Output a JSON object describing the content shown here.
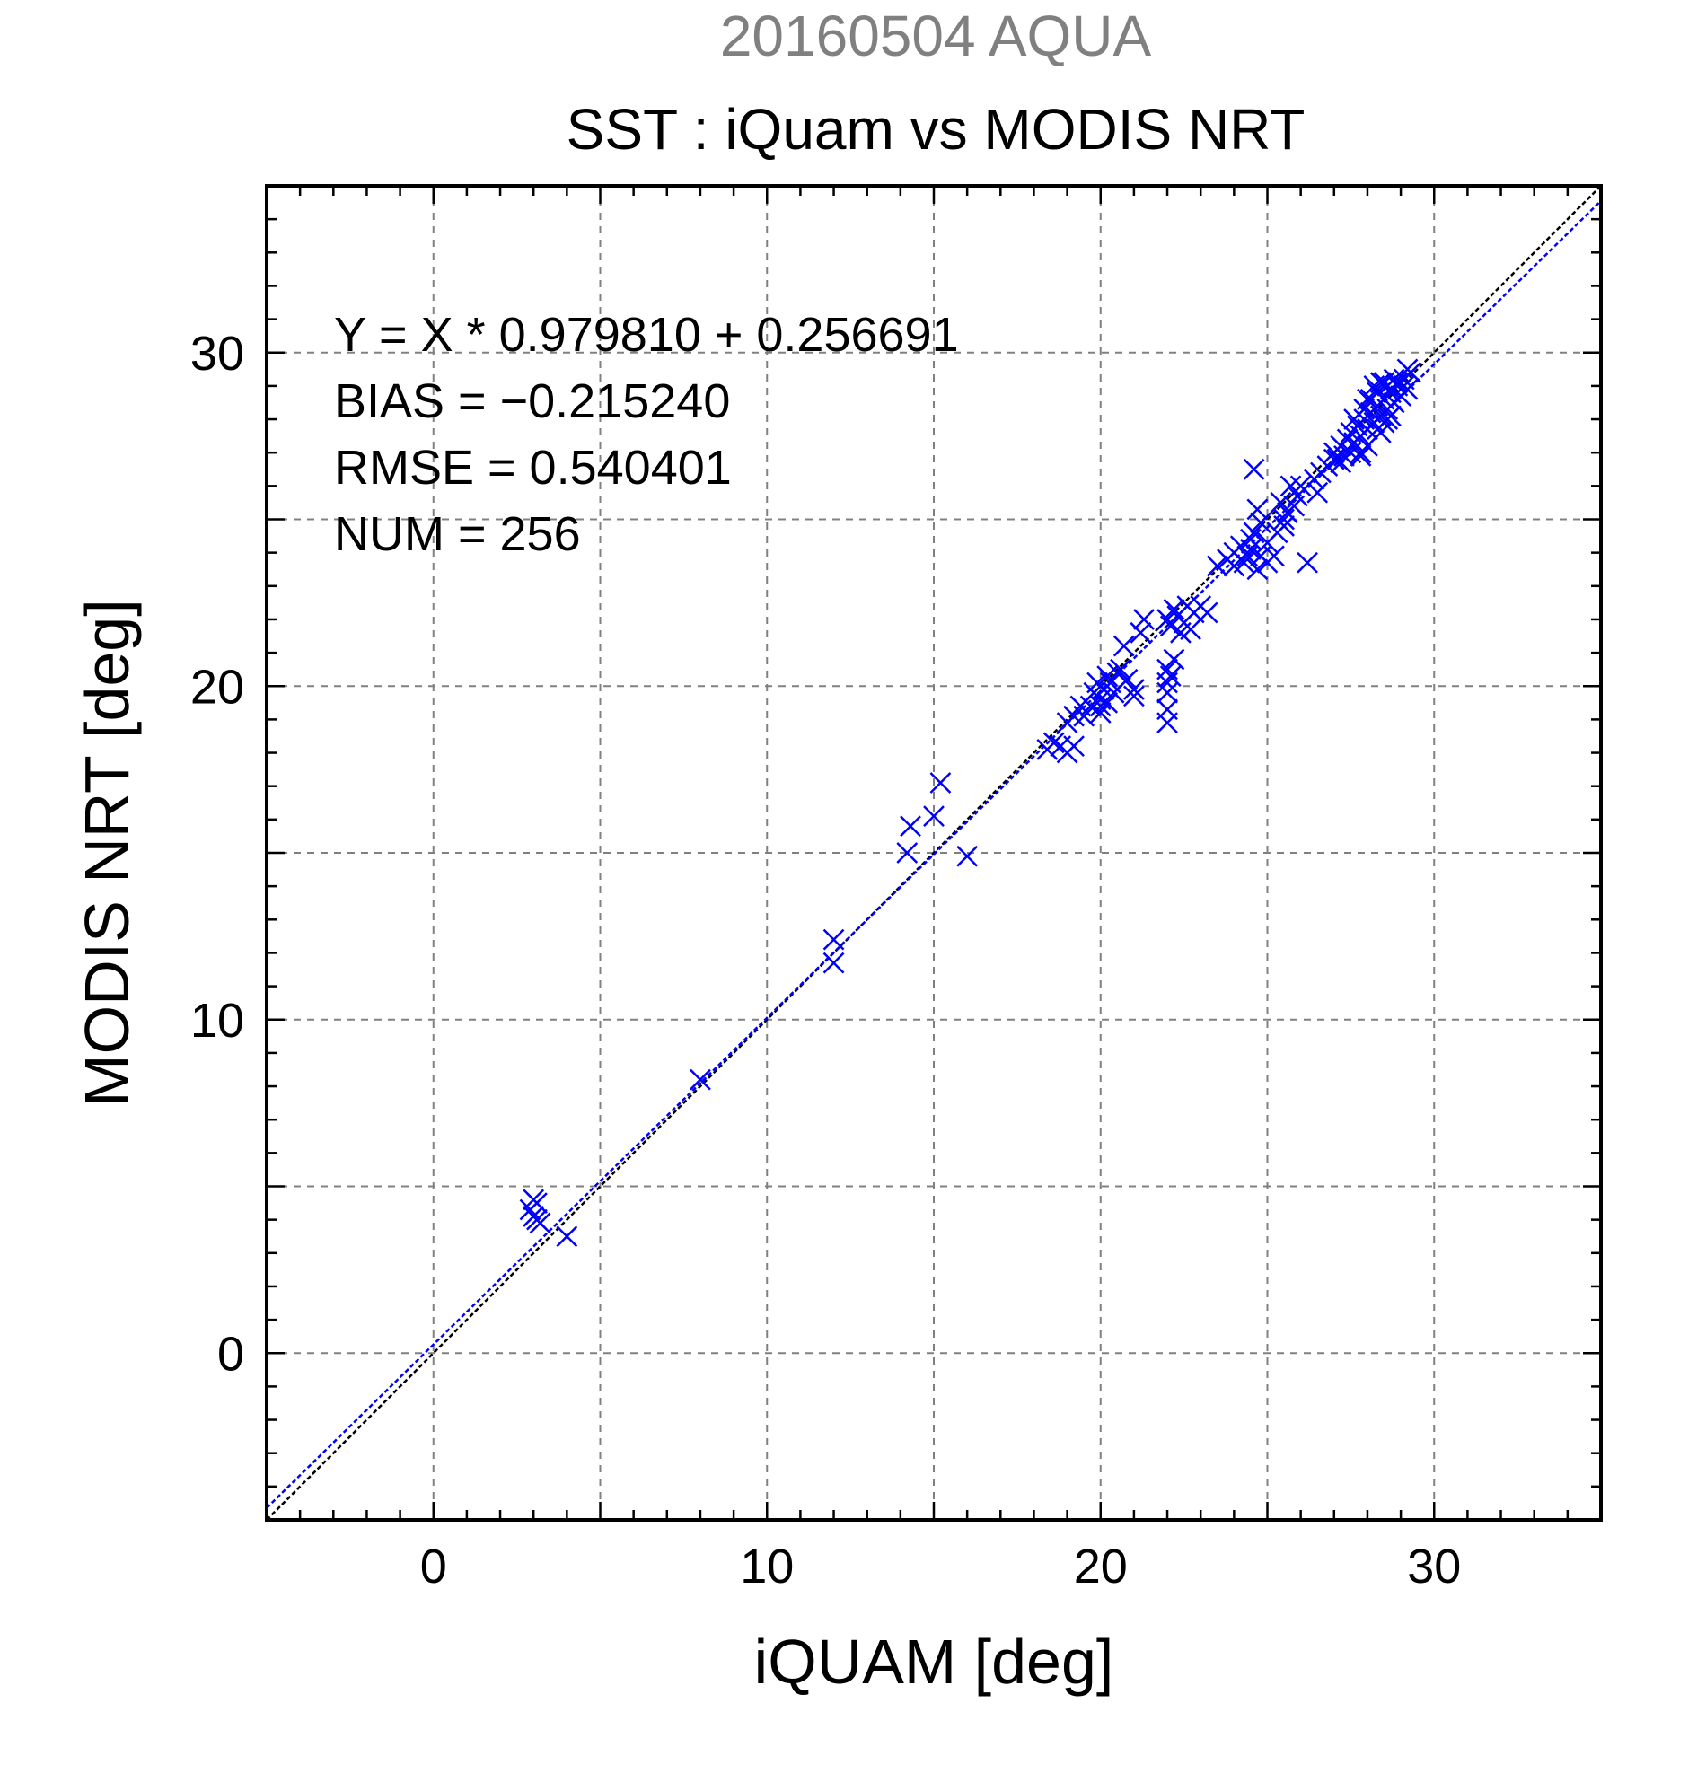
{
  "chart_data": {
    "type": "scatter",
    "title_top": "20160504 AQUA",
    "title": "SST : iQuam vs MODIS NRT",
    "xlabel": "iQUAM [deg]",
    "ylabel": "MODIS NRT [deg]",
    "xlim": [
      -5,
      35
    ],
    "ylim": [
      -5,
      35
    ],
    "x_ticks": [
      0,
      10,
      20,
      30
    ],
    "y_ticks": [
      0,
      10,
      20,
      30
    ],
    "x_tick_labels": [
      "0",
      "10",
      "20",
      "30"
    ],
    "y_tick_labels": [
      "0",
      "10",
      "20",
      "30"
    ],
    "grid": true,
    "grid_step": 5,
    "minor_tick_step": 1,
    "stats": {
      "equation": "Y = X * 0.979810 + 0.256691",
      "bias": "BIAS = −0.215240",
      "rmse": "RMSE = 0.540401",
      "num": "NUM = 256"
    },
    "lines": [
      {
        "kind": "one_to_one",
        "slope": 1.0,
        "intercept": 0.0,
        "color": "#000000"
      },
      {
        "kind": "regression",
        "slope": 0.97981,
        "intercept": 0.256691,
        "color": "#0000ff"
      }
    ],
    "marker_color": "#0000ff",
    "series": [
      {
        "marker": "x",
        "points": [
          [
            3.0,
            4.6
          ],
          [
            3.1,
            4.5
          ],
          [
            2.9,
            4.3
          ],
          [
            3.0,
            4.1
          ],
          [
            3.1,
            4.0
          ],
          [
            3.2,
            3.9
          ],
          [
            4.0,
            3.5
          ],
          [
            8.0,
            8.2
          ],
          [
            12.0,
            12.4
          ],
          [
            12.0,
            11.7
          ],
          [
            14.2,
            15.0
          ],
          [
            14.3,
            15.8
          ],
          [
            15.0,
            16.1
          ],
          [
            15.2,
            17.1
          ],
          [
            16.0,
            14.9
          ],
          [
            18.4,
            18.1
          ],
          [
            18.6,
            18.3
          ],
          [
            18.8,
            18.2
          ],
          [
            19.0,
            18.0
          ],
          [
            19.2,
            18.2
          ],
          [
            19.0,
            18.9
          ],
          [
            19.2,
            19.1
          ],
          [
            19.4,
            19.4
          ],
          [
            19.5,
            19.1
          ],
          [
            19.7,
            19.4
          ],
          [
            19.8,
            19.8
          ],
          [
            19.9,
            20.1
          ],
          [
            20.0,
            19.6
          ],
          [
            20.1,
            19.9
          ],
          [
            20.2,
            20.3
          ],
          [
            20.3,
            20.1
          ],
          [
            20.4,
            19.8
          ],
          [
            20.5,
            20.4
          ],
          [
            20.6,
            20.5
          ],
          [
            20.8,
            20.2
          ],
          [
            21.0,
            19.9
          ],
          [
            21.0,
            19.7
          ],
          [
            20.7,
            21.2
          ],
          [
            21.2,
            21.6
          ],
          [
            21.3,
            22.0
          ],
          [
            20.0,
            19.2
          ],
          [
            20.2,
            19.5
          ],
          [
            20.0,
            19.4
          ],
          [
            22.0,
            22.0
          ],
          [
            22.1,
            21.8
          ],
          [
            22.2,
            22.3
          ],
          [
            22.3,
            22.1
          ],
          [
            22.5,
            21.9
          ],
          [
            22.6,
            22.4
          ],
          [
            22.8,
            22.2
          ],
          [
            22.4,
            21.6
          ],
          [
            22.7,
            21.7
          ],
          [
            23.0,
            22.4
          ],
          [
            23.2,
            22.2
          ],
          [
            22.0,
            20.5
          ],
          [
            22.1,
            20.3
          ],
          [
            22.0,
            20.1
          ],
          [
            22.0,
            19.8
          ],
          [
            22.0,
            19.3
          ],
          [
            22.0,
            18.9
          ],
          [
            22.2,
            20.8
          ],
          [
            23.5,
            23.6
          ],
          [
            23.8,
            23.8
          ],
          [
            24.0,
            24.0
          ],
          [
            24.2,
            24.2
          ],
          [
            24.4,
            23.9
          ],
          [
            24.0,
            23.6
          ],
          [
            24.3,
            23.7
          ],
          [
            24.5,
            24.4
          ],
          [
            24.6,
            24.6
          ],
          [
            24.8,
            24.9
          ],
          [
            24.5,
            24.1
          ],
          [
            24.8,
            23.9
          ],
          [
            25.0,
            23.7
          ],
          [
            24.7,
            23.5
          ],
          [
            25.2,
            23.9
          ],
          [
            25.0,
            24.3
          ],
          [
            25.3,
            24.6
          ],
          [
            25.5,
            25.0
          ],
          [
            25.6,
            25.2
          ],
          [
            25.8,
            25.4
          ],
          [
            25.5,
            24.8
          ],
          [
            25.9,
            25.7
          ],
          [
            26.0,
            26.0
          ],
          [
            25.4,
            25.5
          ],
          [
            24.7,
            25.3
          ],
          [
            24.6,
            26.5
          ],
          [
            26.2,
            23.7
          ],
          [
            25.7,
            26.0
          ],
          [
            26.4,
            26.2
          ],
          [
            26.5,
            25.8
          ],
          [
            26.6,
            26.4
          ],
          [
            26.8,
            26.6
          ],
          [
            27.0,
            27.0
          ],
          [
            27.1,
            26.8
          ],
          [
            27.2,
            27.2
          ],
          [
            27.3,
            26.9
          ],
          [
            27.4,
            27.4
          ],
          [
            27.5,
            27.6
          ],
          [
            27.6,
            27.3
          ],
          [
            27.7,
            27.8
          ],
          [
            27.8,
            27.5
          ],
          [
            27.9,
            28.0
          ],
          [
            28.0,
            27.7
          ],
          [
            28.1,
            28.2
          ],
          [
            28.2,
            27.9
          ],
          [
            28.3,
            28.4
          ],
          [
            28.4,
            28.1
          ],
          [
            28.5,
            28.6
          ],
          [
            28.6,
            28.3
          ],
          [
            28.7,
            28.8
          ],
          [
            28.8,
            28.5
          ],
          [
            28.9,
            29.0
          ],
          [
            29.0,
            28.7
          ],
          [
            29.1,
            29.2
          ],
          [
            29.2,
            28.9
          ],
          [
            29.3,
            29.4
          ],
          [
            28.0,
            28.6
          ],
          [
            28.2,
            29.0
          ],
          [
            28.4,
            29.1
          ],
          [
            28.6,
            29.0
          ],
          [
            28.8,
            29.2
          ],
          [
            27.8,
            27.0
          ],
          [
            28.0,
            27.2
          ],
          [
            27.5,
            27.0
          ],
          [
            27.8,
            26.9
          ],
          [
            28.3,
            27.7
          ],
          [
            28.5,
            27.9
          ],
          [
            28.7,
            28.1
          ],
          [
            27.6,
            28.0
          ],
          [
            27.9,
            28.3
          ],
          [
            28.1,
            28.6
          ],
          [
            28.3,
            28.8
          ],
          [
            28.5,
            29.1
          ],
          [
            28.7,
            28.9
          ],
          [
            28.9,
            29.1
          ],
          [
            29.1,
            29.0
          ],
          [
            29.2,
            29.5
          ],
          [
            27.2,
            26.7
          ],
          [
            27.0,
            26.8
          ],
          [
            28.6,
            28.0
          ],
          [
            28.4,
            27.6
          ]
        ]
      }
    ]
  }
}
